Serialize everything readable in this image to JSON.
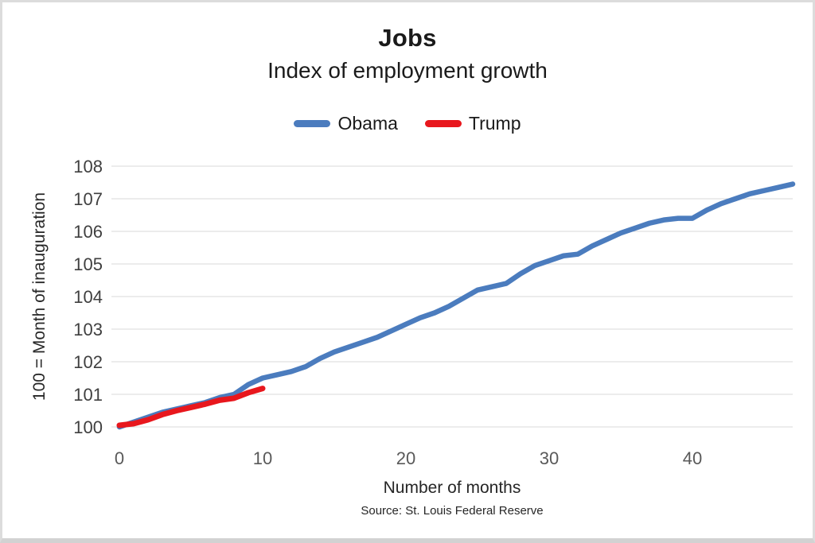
{
  "chart_data": {
    "type": "line",
    "title": "Jobs",
    "subtitle": "Index of employment growth",
    "xlabel": "Number of months",
    "ylabel": "100 = Month of inauguration",
    "source": "Source: St. Louis Federal Reserve",
    "x_ticks": [
      0,
      10,
      20,
      30,
      40
    ],
    "y_ticks": [
      100,
      101,
      102,
      103,
      104,
      105,
      106,
      107,
      108
    ],
    "xlim": [
      0,
      47.5
    ],
    "ylim": [
      100,
      108
    ],
    "grid": true,
    "gridline_color": "#d9d9d9",
    "legend_position": "top-center",
    "series": [
      {
        "name": "Obama",
        "color": "#4b7cbe",
        "line_width": 6.5,
        "x": [
          0,
          1,
          2,
          3,
          4,
          5,
          6,
          7,
          8,
          9,
          10,
          11,
          12,
          13,
          14,
          15,
          16,
          17,
          18,
          19,
          20,
          21,
          22,
          23,
          24,
          25,
          26,
          27,
          28,
          29,
          30,
          31,
          32,
          33,
          34,
          35,
          36,
          37,
          38,
          39,
          40,
          41,
          42,
          43,
          44,
          45,
          46,
          47
        ],
        "values": [
          100.0,
          100.15,
          100.3,
          100.45,
          100.55,
          100.65,
          100.75,
          100.9,
          101.0,
          101.3,
          101.5,
          101.6,
          101.7,
          101.85,
          102.1,
          102.3,
          102.45,
          102.6,
          102.75,
          102.95,
          103.15,
          103.35,
          103.5,
          103.7,
          103.95,
          104.2,
          104.3,
          104.4,
          104.7,
          104.95,
          105.1,
          105.25,
          105.3,
          105.55,
          105.75,
          105.95,
          106.1,
          106.25,
          106.35,
          106.4,
          106.4,
          106.65,
          106.85,
          107.0,
          107.15,
          107.25,
          107.35,
          107.45
        ]
      },
      {
        "name": "Trump",
        "color": "#e8171d",
        "line_width": 7,
        "x": [
          0,
          1,
          2,
          3,
          4,
          5,
          6,
          7,
          8,
          9,
          10
        ],
        "values": [
          100.05,
          100.1,
          100.22,
          100.38,
          100.5,
          100.6,
          100.7,
          100.82,
          100.88,
          101.05,
          101.18
        ]
      }
    ]
  }
}
